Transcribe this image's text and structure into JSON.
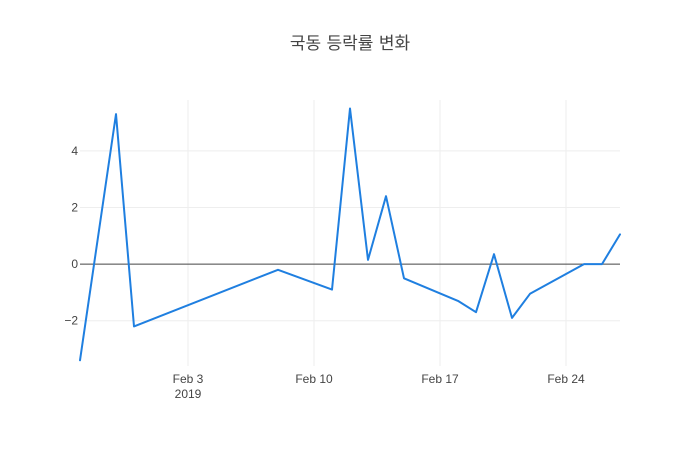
{
  "chart_data": {
    "type": "line",
    "title": "국동 등락률 변화",
    "xlabel": "",
    "ylabel": "",
    "x": [
      "2019-01-28",
      "2019-01-30",
      "2019-01-31",
      "2019-02-08",
      "2019-02-11",
      "2019-02-12",
      "2019-02-13",
      "2019-02-14",
      "2019-02-15",
      "2019-02-18",
      "2019-02-19",
      "2019-02-20",
      "2019-02-21",
      "2019-02-22",
      "2019-02-25",
      "2019-02-26",
      "2019-02-27"
    ],
    "values": [
      -3.4,
      5.3,
      -2.2,
      -0.2,
      -0.9,
      5.5,
      0.15,
      2.4,
      -0.5,
      -1.3,
      -1.7,
      0.35,
      -1.9,
      -1.05,
      0.0,
      0.0,
      1.05
    ],
    "color": "#1f7fe0",
    "ylim": [
      -3.6,
      5.8
    ],
    "xlim": [
      "2019-01-28",
      "2019-02-27"
    ],
    "x_ticks": [
      {
        "date": "2019-02-03",
        "label": "Feb 3",
        "sublabel": "2019"
      },
      {
        "date": "2019-02-10",
        "label": "Feb 10",
        "sublabel": ""
      },
      {
        "date": "2019-02-17",
        "label": "Feb 17",
        "sublabel": ""
      },
      {
        "date": "2019-02-24",
        "label": "Feb 24",
        "sublabel": ""
      }
    ],
    "y_ticks": [
      {
        "value": -2,
        "label": "−2"
      },
      {
        "value": 0,
        "label": "0"
      },
      {
        "value": 2,
        "label": "2"
      },
      {
        "value": 4,
        "label": "4"
      }
    ],
    "grid": true,
    "zero_line": true
  }
}
